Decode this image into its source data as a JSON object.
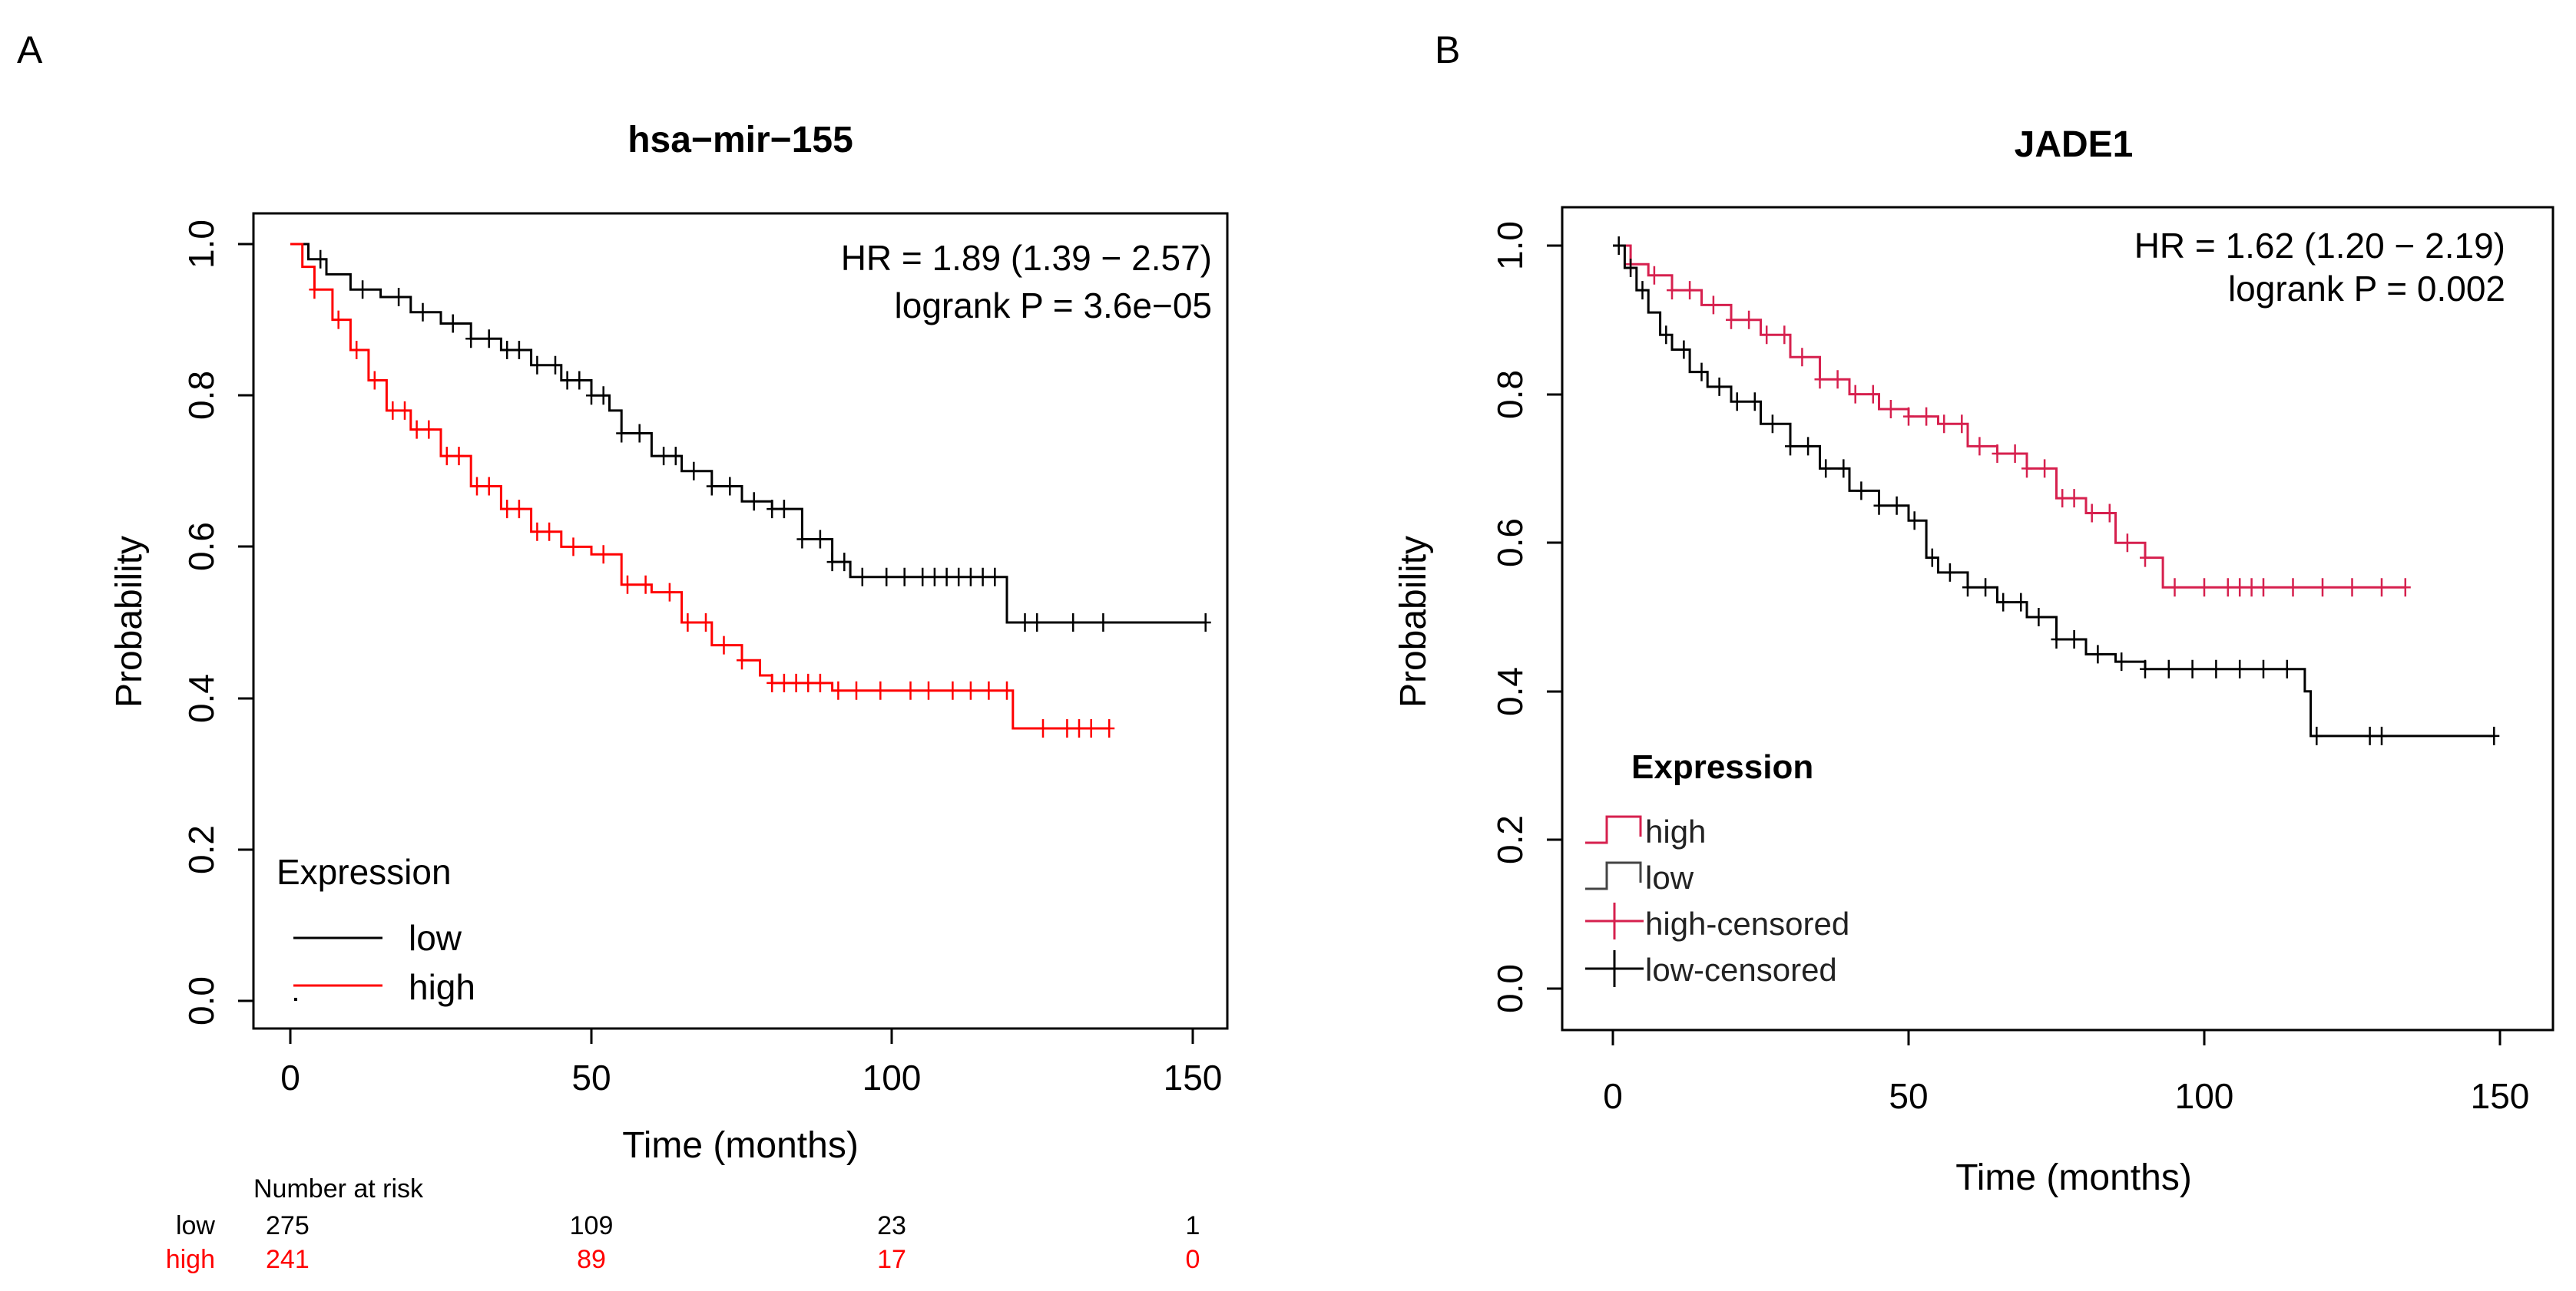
{
  "panels": {
    "a": {
      "letter": "A"
    },
    "b": {
      "letter": "B"
    }
  },
  "risk_table": {
    "header": "Number at risk",
    "rows": [
      {
        "label": "low",
        "color": "#000000",
        "values": [
          "275",
          "109",
          "23",
          "1"
        ]
      },
      {
        "label": "high",
        "color": "#ff0000",
        "values": [
          "241",
          "89",
          "17",
          "0"
        ]
      }
    ]
  },
  "chart_data": [
    {
      "type": "line",
      "subtype": "kaplan-meier",
      "title": "hsa−mir−155",
      "xlabel": "Time (months)",
      "ylabel": "Probability",
      "xlim": [
        0,
        155
      ],
      "ylim": [
        0,
        1.0
      ],
      "xticks": [
        "0",
        "50",
        "100",
        "150"
      ],
      "yticks": [
        "0.0",
        "0.2",
        "0.4",
        "0.6",
        "0.8",
        "1.0"
      ],
      "annotations": [
        "HR = 1.89 (1.39 − 2.57)",
        "logrank P = 3.6e−05"
      ],
      "legend": {
        "title": "Expression",
        "position": "bottom-left",
        "entries": [
          "low",
          "high"
        ]
      },
      "series": [
        {
          "name": "low",
          "color": "#000000",
          "x": [
            0,
            3,
            6,
            10,
            15,
            20,
            25,
            30,
            35,
            40,
            45,
            50,
            53,
            55,
            60,
            65,
            70,
            75,
            80,
            85,
            90,
            93,
            95,
            100,
            110,
            118,
            119,
            125,
            130,
            140,
            152
          ],
          "y": [
            1.0,
            0.98,
            0.96,
            0.94,
            0.93,
            0.91,
            0.895,
            0.875,
            0.86,
            0.84,
            0.82,
            0.8,
            0.78,
            0.75,
            0.72,
            0.7,
            0.68,
            0.66,
            0.65,
            0.61,
            0.58,
            0.56,
            0.56,
            0.56,
            0.56,
            0.56,
            0.5,
            0.5,
            0.5,
            0.5,
            0.5
          ],
          "censored": [
            5,
            12,
            18,
            22,
            27,
            30,
            33,
            36,
            38,
            41,
            44,
            46,
            48,
            50,
            52,
            55,
            58,
            62,
            64,
            67,
            70,
            73,
            77,
            80,
            82,
            85,
            88,
            90,
            92,
            95,
            99,
            102,
            105,
            107,
            109,
            111,
            113,
            115,
            117,
            122,
            124,
            130,
            135,
            152
          ]
        },
        {
          "name": "high",
          "color": "#ff0000",
          "x": [
            0,
            2,
            4,
            7,
            10,
            13,
            16,
            20,
            25,
            30,
            35,
            40,
            45,
            50,
            55,
            60,
            65,
            70,
            75,
            78,
            80,
            90,
            95,
            100,
            110,
            120,
            121,
            130,
            136
          ],
          "y": [
            1.0,
            0.97,
            0.94,
            0.9,
            0.86,
            0.82,
            0.78,
            0.755,
            0.72,
            0.68,
            0.65,
            0.62,
            0.6,
            0.59,
            0.55,
            0.54,
            0.5,
            0.47,
            0.45,
            0.43,
            0.42,
            0.41,
            0.41,
            0.41,
            0.41,
            0.36,
            0.36,
            0.36,
            0.36
          ],
          "censored": [
            4,
            8,
            11,
            14,
            17,
            19,
            21,
            23,
            26,
            28,
            31,
            33,
            36,
            38,
            41,
            43,
            47,
            52,
            56,
            59,
            63,
            66,
            69,
            72,
            75,
            80,
            82,
            84,
            86,
            88,
            91,
            94,
            98,
            103,
            106,
            110,
            113,
            116,
            119,
            125,
            129,
            131,
            133,
            136
          ]
        }
      ]
    },
    {
      "type": "line",
      "subtype": "kaplan-meier",
      "title": "JADE1",
      "xlabel": "Time (months)",
      "ylabel": "Probability",
      "xlim": [
        -3,
        153
      ],
      "ylim": [
        0,
        1.0
      ],
      "xticks": [
        "0",
        "50",
        "100",
        "150"
      ],
      "yticks": [
        "0.0",
        "0.2",
        "0.4",
        "0.6",
        "0.8",
        "1.0"
      ],
      "annotations": [
        "HR = 1.62 (1.20 − 2.19)",
        "logrank P = 0.002"
      ],
      "legend": {
        "title": "Expression",
        "position": "bottom-left",
        "entries": [
          "high",
          "low",
          "high-censored",
          "low-censored"
        ]
      },
      "series": [
        {
          "name": "high",
          "color": "#d6204e",
          "x": [
            0,
            3,
            6,
            10,
            15,
            20,
            25,
            30,
            35,
            40,
            45,
            50,
            55,
            60,
            65,
            70,
            75,
            80,
            85,
            90,
            93,
            100,
            110,
            120,
            134
          ],
          "y": [
            1.0,
            0.975,
            0.96,
            0.94,
            0.92,
            0.9,
            0.88,
            0.85,
            0.82,
            0.8,
            0.78,
            0.77,
            0.76,
            0.73,
            0.72,
            0.7,
            0.66,
            0.64,
            0.6,
            0.58,
            0.54,
            0.54,
            0.54,
            0.54,
            0.54
          ],
          "censored": [
            3,
            7,
            10,
            13,
            17,
            20,
            23,
            26,
            29,
            32,
            35,
            38,
            41,
            44,
            47,
            50,
            53,
            56,
            59,
            62,
            65,
            68,
            70,
            73,
            76,
            78,
            81,
            84,
            87,
            90,
            95,
            100,
            104,
            106,
            108,
            110,
            115,
            120,
            125,
            130,
            134
          ]
        },
        {
          "name": "low",
          "color": "#000000",
          "x": [
            0,
            2,
            4,
            6,
            8,
            10,
            13,
            16,
            20,
            25,
            30,
            35,
            40,
            45,
            50,
            53,
            55,
            60,
            65,
            70,
            75,
            80,
            85,
            90,
            95,
            100,
            110,
            117,
            118,
            125,
            130,
            140,
            149
          ],
          "y": [
            1.0,
            0.97,
            0.94,
            0.91,
            0.88,
            0.86,
            0.83,
            0.81,
            0.79,
            0.76,
            0.73,
            0.7,
            0.67,
            0.65,
            0.63,
            0.58,
            0.56,
            0.54,
            0.52,
            0.5,
            0.47,
            0.45,
            0.44,
            0.43,
            0.43,
            0.43,
            0.43,
            0.4,
            0.34,
            0.34,
            0.34,
            0.34,
            0.34
          ],
          "censored": [
            1,
            3,
            5,
            9,
            12,
            15,
            18,
            21,
            24,
            27,
            30,
            33,
            36,
            39,
            42,
            45,
            48,
            51,
            54,
            57,
            60,
            63,
            66,
            69,
            72,
            75,
            78,
            82,
            86,
            90,
            94,
            98,
            102,
            106,
            110,
            114,
            119,
            128,
            130,
            149
          ]
        }
      ]
    }
  ]
}
